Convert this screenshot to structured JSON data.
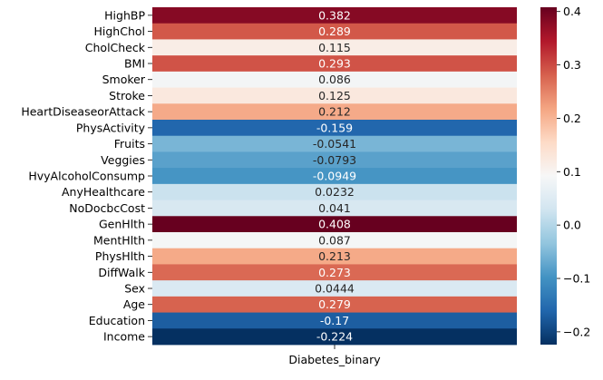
{
  "chart_data": {
    "type": "heatmap",
    "x_categories": [
      "Diabetes_binary"
    ],
    "y_categories": [
      "HighBP",
      "HighChol",
      "CholCheck",
      "BMI",
      "Smoker",
      "Stroke",
      "HeartDiseaseorAttack",
      "PhysActivity",
      "Fruits",
      "Veggies",
      "HvyAlcoholConsump",
      "AnyHealthcare",
      "NoDocbcCost",
      "GenHlth",
      "MentHlth",
      "PhysHlth",
      "DiffWalk",
      "Sex",
      "Age",
      "Education",
      "Income"
    ],
    "values": [
      0.382,
      0.289,
      0.115,
      0.293,
      0.086,
      0.125,
      0.212,
      -0.159,
      -0.0541,
      -0.0793,
      -0.0949,
      0.0232,
      0.041,
      0.408,
      0.087,
      0.213,
      0.273,
      0.0444,
      0.279,
      -0.17,
      -0.224
    ],
    "value_labels": [
      "0.382",
      "0.289",
      "0.115",
      "0.293",
      "0.086",
      "0.125",
      "0.212",
      "-0.159",
      "-0.0541",
      "-0.0793",
      "-0.0949",
      "0.0232",
      "0.041",
      "0.408",
      "0.087",
      "0.213",
      "0.273",
      "0.0444",
      "0.279",
      "-0.17",
      "-0.224"
    ],
    "colormap": "RdBu_r",
    "vmin": -0.224,
    "vmax": 0.408,
    "colorbar_ticks": [
      "0.4",
      "0.3",
      "0.2",
      "0.1",
      "0.0",
      "−0.1",
      "−0.2"
    ],
    "colorbar_tick_values": [
      0.4,
      0.3,
      0.2,
      0.1,
      0.0,
      -0.1,
      -0.2
    ],
    "title": "",
    "xlabel": "",
    "ylabel": ""
  }
}
